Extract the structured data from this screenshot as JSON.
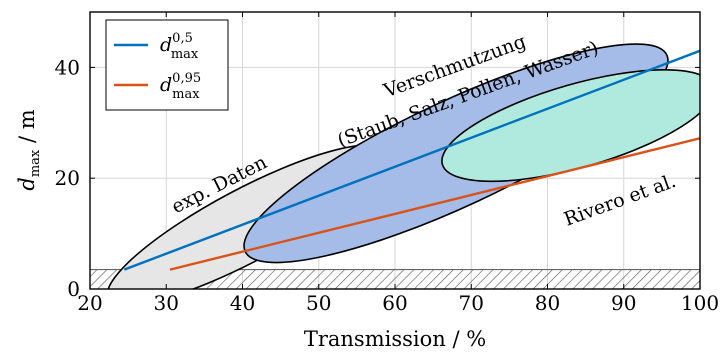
{
  "chart_data": {
    "type": "line",
    "xlabel": "Transmission / %",
    "ylabel_main": "d",
    "ylabel_sub": "max",
    "ylabel_unit": " / m",
    "xlim": [
      20,
      100
    ],
    "ylim": [
      0,
      50
    ],
    "xticks": [
      "20",
      "30",
      "40",
      "50",
      "60",
      "70",
      "80",
      "90",
      "100"
    ],
    "xtick_values": [
      20,
      30,
      40,
      50,
      60,
      70,
      80,
      90,
      100
    ],
    "yticks": [
      "0",
      "20",
      "40"
    ],
    "ytick_values": [
      0,
      20,
      40
    ],
    "grid": true,
    "legend_position": "top-left",
    "series": [
      {
        "name_main": "d",
        "name_sup": "0,5",
        "name_sub": "max",
        "color": "#0072bd",
        "x": [
          24.5,
          100
        ],
        "y": [
          3.5,
          43
        ]
      },
      {
        "name_main": "d",
        "name_sup": "0,95",
        "name_sub": "max",
        "color": "#d95319",
        "x": [
          30.5,
          100
        ],
        "y": [
          3.5,
          27.2
        ]
      }
    ],
    "hatched_band": {
      "y_from": 0,
      "y_to": 3.5
    },
    "regions": [
      {
        "label": "exp. Daten",
        "fill": "#e6e6e6",
        "center": [
          40.5,
          11.5
        ],
        "rx_data": 20.5,
        "ry_data": 6.5,
        "angle_deg": -28
      },
      {
        "label_line1": "Verschmutzung",
        "label_line2": "(Staub, Salz, Pollen, Wasser)",
        "fill": "#a6bce8",
        "center": [
          68,
          24.5
        ],
        "rx_data": 30.5,
        "ry_data": 9.5,
        "angle_deg": -25
      },
      {
        "label": "Rivero et al.",
        "fill": "#b0e9de",
        "center": [
          84,
          29.5
        ],
        "rx_data": 18.5,
        "ry_data": 7.5,
        "angle_deg": -16
      }
    ]
  }
}
